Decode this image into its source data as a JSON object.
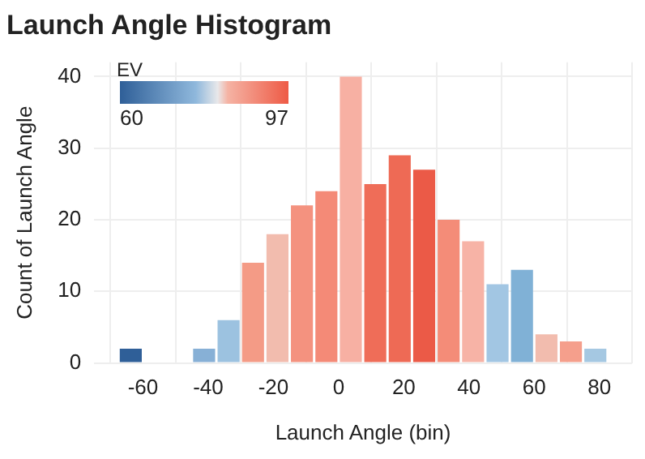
{
  "chart_data": {
    "type": "histogram",
    "title": "Launch Angle Histogram",
    "xlabel": "Launch Angle (bin)",
    "ylabel": "Count of Launch Angle",
    "clabel": "EV",
    "annotations": [
      "60",
      "97"
    ],
    "bins": [
      -67.5,
      -60,
      -52.5,
      -45,
      -37.5,
      -30,
      -22.5,
      -15,
      -7.5,
      0,
      7.5,
      15,
      22.5,
      30,
      37.5,
      45,
      52.5,
      60,
      67.5,
      75,
      82.5
    ],
    "values": [
      2,
      0,
      0,
      2,
      6,
      14,
      18,
      22,
      24,
      40,
      25,
      29,
      27,
      20,
      17,
      11,
      13,
      4,
      3,
      2
    ],
    "colors": [
      "#2f5f98",
      null,
      null,
      "#87b0d6",
      "#9cc2e0",
      "#f49b86",
      "#f2bcae",
      "#f4927f",
      "#f48a77",
      "#f7b0a3",
      "#ef6d58",
      "#ee6a55",
      "#eb5a47",
      "#f48c78",
      "#f7b3a6",
      "#a2c6e3",
      "#80b1d6",
      "#f2bcae",
      "#f59f8c",
      "#a5c8e2"
    ],
    "xlim": [
      -75,
      90
    ],
    "xticks": [
      -60,
      -40,
      -20,
      0,
      20,
      40,
      60,
      80
    ],
    "ylim": [
      0,
      42
    ],
    "yticks": [
      0,
      10,
      20,
      30,
      40
    ],
    "grid": true
  }
}
